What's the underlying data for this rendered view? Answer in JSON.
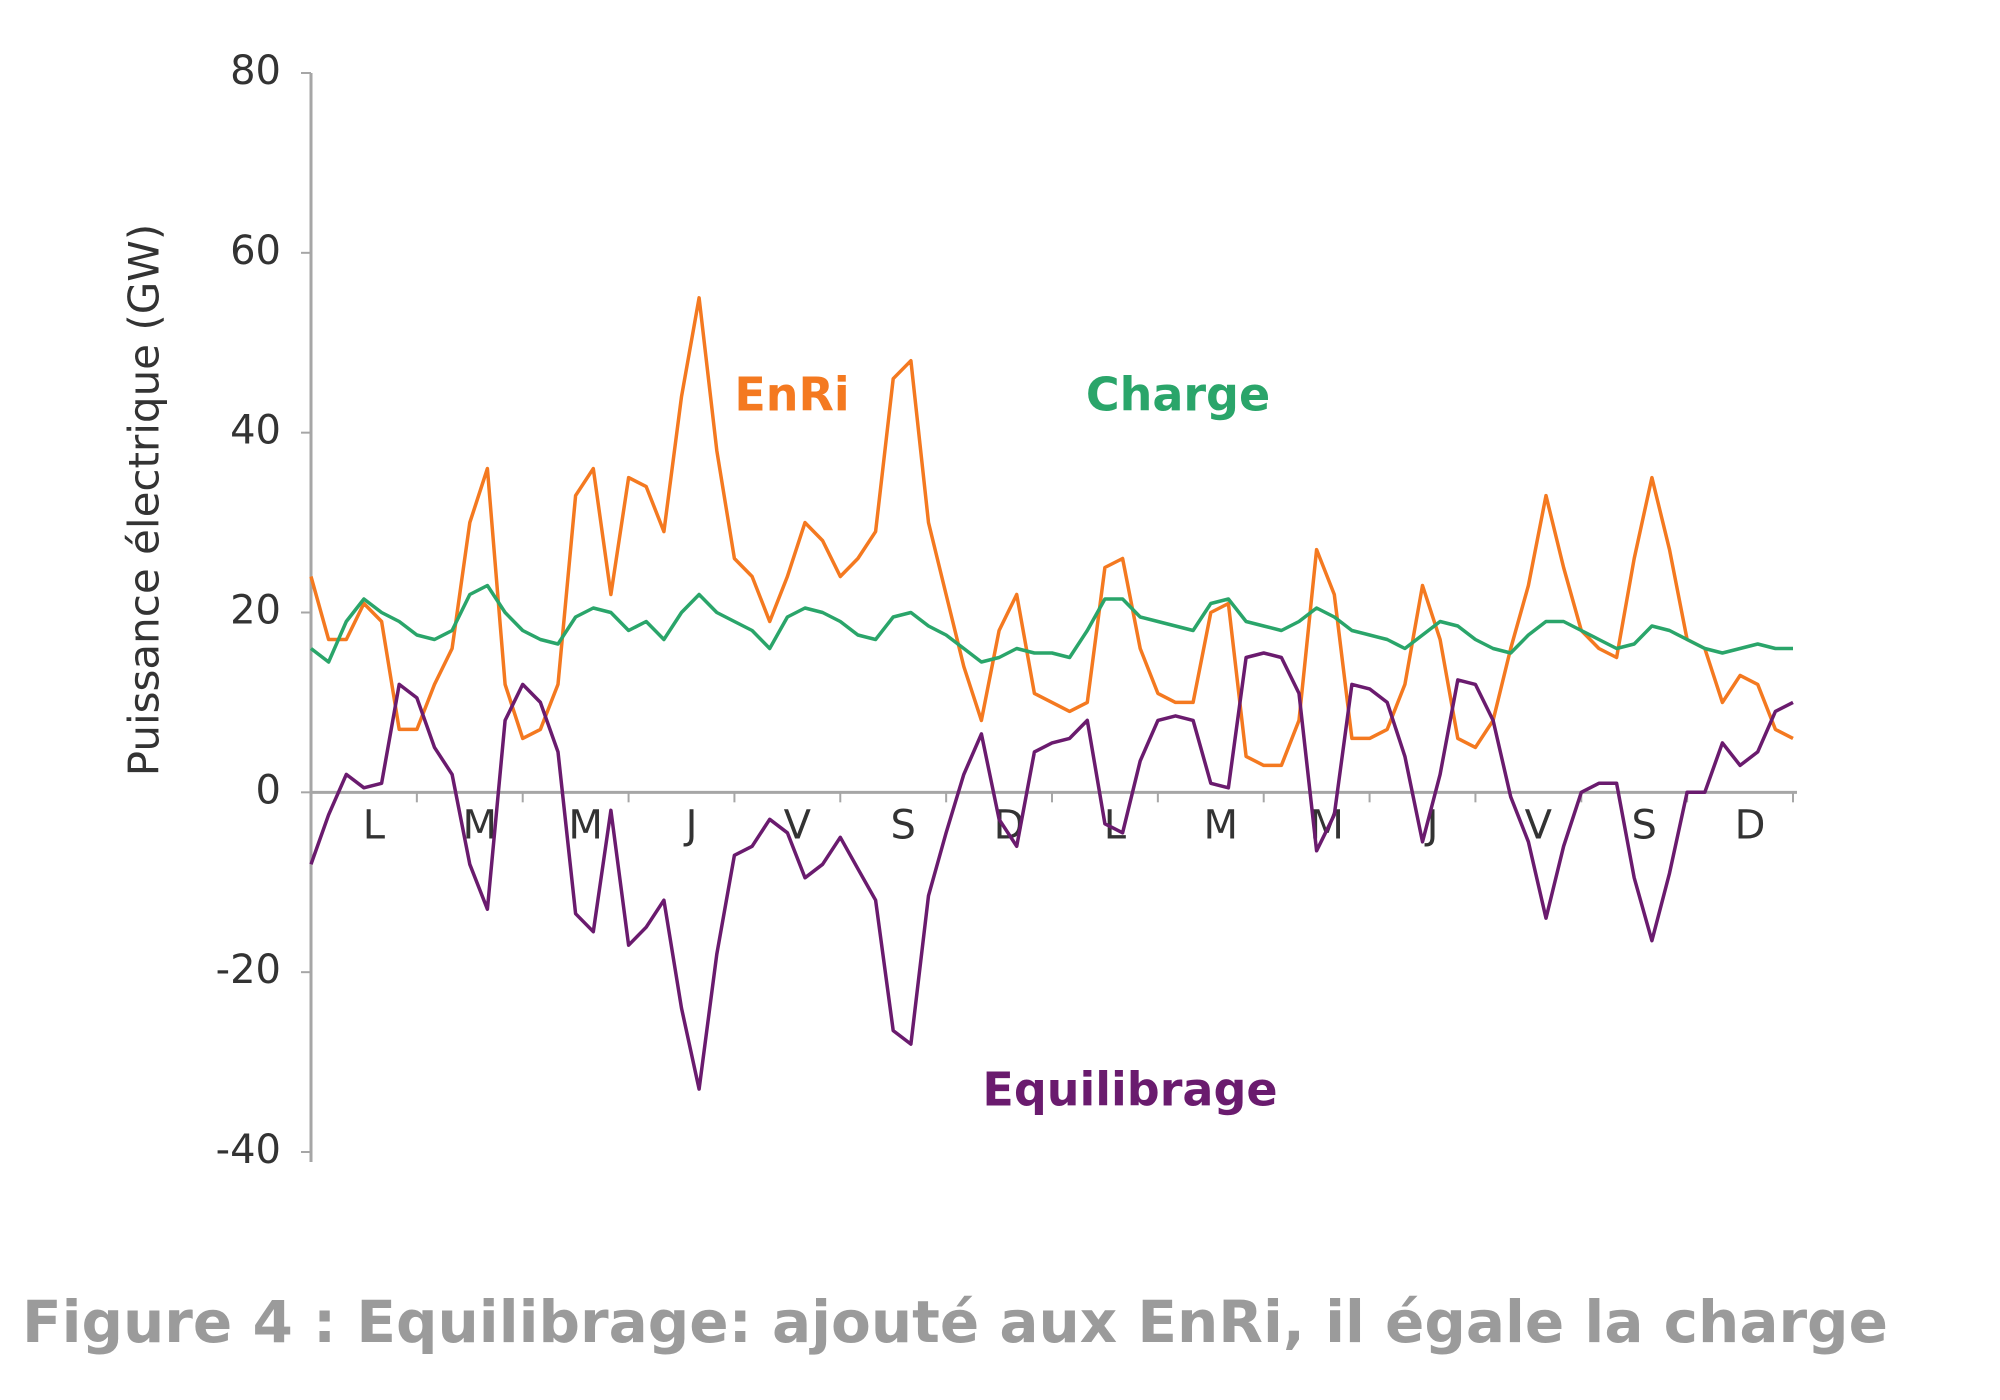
{
  "chart_data": {
    "type": "line",
    "title": "Figure 4 : Equilibrage: ajouté aux EnRi, il égale la charge",
    "y_label": "Puissance électrique (GW)",
    "categories": [
      null,
      null,
      null,
      "L",
      null,
      null,
      null,
      null,
      null,
      "M",
      null,
      null,
      null,
      null,
      null,
      "M",
      null,
      null,
      null,
      null,
      null,
      "J",
      null,
      null,
      null,
      null,
      null,
      "V",
      null,
      null,
      null,
      null,
      null,
      "S",
      null,
      null,
      null,
      null,
      null,
      "D",
      null,
      null,
      null,
      null,
      null,
      "L",
      null,
      null,
      null,
      null,
      null,
      "M",
      null,
      null,
      null,
      null,
      null,
      "M",
      null,
      null,
      null,
      null,
      null,
      "J",
      null,
      null,
      null,
      null,
      null,
      "V",
      null,
      null,
      null,
      null,
      null,
      "S",
      null,
      null,
      null,
      null,
      null,
      "D",
      null,
      null,
      null
    ],
    "series": [
      {
        "name": "EnRi",
        "color": "#f47920",
        "values": [
          24,
          17,
          17,
          21,
          19,
          7,
          7,
          12,
          16,
          30,
          36,
          12,
          6,
          7,
          12,
          33,
          36,
          22,
          35,
          34,
          29,
          44,
          55,
          38,
          26,
          24,
          19,
          24,
          30,
          28,
          24,
          26,
          29,
          46,
          48,
          30,
          22,
          14,
          8,
          18,
          22,
          11,
          10,
          9,
          10,
          25,
          26,
          16,
          11,
          10,
          10,
          20,
          21,
          4,
          3,
          3,
          8,
          27,
          22,
          6,
          6,
          7,
          12,
          23,
          17,
          6,
          5,
          8,
          16,
          23,
          33,
          25,
          18,
          16,
          15,
          26,
          35,
          27,
          17,
          16,
          10,
          13,
          12,
          7,
          6
        ]
      },
      {
        "name": "Charge",
        "color": "#2aa56a",
        "values": [
          16,
          14.5,
          19,
          21.5,
          20,
          19,
          17.5,
          17,
          18,
          22,
          23,
          20,
          18,
          17,
          16.5,
          19.5,
          20.5,
          20,
          18,
          19,
          17,
          20,
          22,
          20,
          19,
          18,
          16,
          19.5,
          20.5,
          20,
          19,
          17.5,
          17,
          19.5,
          20,
          18.5,
          17.5,
          16,
          14.5,
          15,
          16,
          15.5,
          15.5,
          15,
          18,
          21.5,
          21.5,
          19.5,
          19,
          18.5,
          18,
          21,
          21.5,
          19,
          18.5,
          18,
          19,
          20.5,
          19.5,
          18,
          17.5,
          17,
          16,
          17.5,
          19,
          18.5,
          17,
          16,
          15.5,
          17.5,
          19,
          19,
          18,
          17,
          16,
          16.5,
          18.5,
          18,
          17,
          16,
          15.5,
          16,
          16.5,
          16,
          16
        ]
      },
      {
        "name": "Equilibrage",
        "color": "#6a1b6e",
        "values": [
          -8,
          -2.5,
          2,
          0.5,
          1,
          12,
          10.5,
          5,
          2,
          -8,
          -13,
          8,
          12,
          10,
          4.5,
          -13.5,
          -15.5,
          -2,
          -17,
          -15,
          -12,
          -24,
          -33,
          -18,
          -7,
          -6,
          -3,
          -4.5,
          -9.5,
          -8,
          -5,
          -8.5,
          -12,
          -26.5,
          -28,
          -11.5,
          -4.5,
          2,
          6.5,
          -3,
          -6,
          4.5,
          5.5,
          6,
          8,
          -3.5,
          -4.5,
          3.5,
          8,
          8.5,
          8,
          1,
          0.5,
          15,
          15.5,
          15,
          11,
          -6.5,
          -2.5,
          12,
          11.5,
          10,
          4,
          -5.5,
          2,
          12.5,
          12,
          8,
          -0.5,
          -5.5,
          -14,
          -6,
          0,
          1,
          1,
          -9.5,
          -16.5,
          -9,
          0,
          0,
          5.5,
          3,
          4.5,
          9,
          10
        ]
      }
    ],
    "ylim": [
      -40,
      80
    ],
    "yticks": [
      -40,
      -20,
      0,
      20,
      40,
      60,
      80
    ]
  }
}
